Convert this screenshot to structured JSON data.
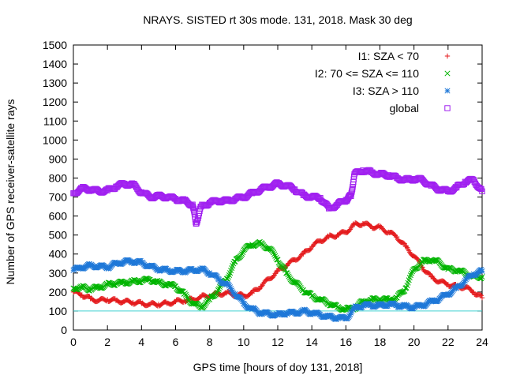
{
  "chart_data": {
    "type": "scatter",
    "title": "NRAYS. SISTED rt 30s mode. 131, 2018. Mask 30 deg",
    "xlabel": "GPS time [hours of doy 131, 2018]",
    "ylabel": "Number of GPS receiver-satellite rays",
    "xlim": [
      0,
      24
    ],
    "ylim": [
      0,
      1500
    ],
    "x_ticks": [
      0,
      2,
      4,
      6,
      8,
      10,
      12,
      14,
      16,
      18,
      20,
      22,
      24
    ],
    "y_ticks": [
      0,
      100,
      200,
      300,
      400,
      500,
      600,
      700,
      800,
      900,
      1000,
      1100,
      1200,
      1300,
      1400,
      1500
    ],
    "legend_position": "top-right",
    "reference_line": {
      "y": 100,
      "color": "#3fd0d0"
    },
    "series": [
      {
        "name": "I1: SZA < 70",
        "marker": "+",
        "color": "#e41a1c",
        "x": [
          0,
          0.5,
          1,
          1.5,
          2,
          2.5,
          3,
          3.5,
          4,
          4.5,
          5,
          5.5,
          6,
          6.5,
          7,
          7.5,
          8,
          8.5,
          9,
          9.5,
          10,
          10.5,
          11,
          11.5,
          12,
          12.5,
          13,
          13.5,
          14,
          14.5,
          15,
          15.5,
          16,
          16.5,
          17,
          17.5,
          18,
          18.5,
          19,
          19.5,
          20,
          20.5,
          21,
          21.5,
          22,
          22.5,
          23,
          23.5,
          24
        ],
        "values": [
          200,
          185,
          165,
          155,
          160,
          155,
          150,
          145,
          140,
          135,
          135,
          140,
          150,
          155,
          160,
          175,
          180,
          190,
          195,
          185,
          180,
          195,
          230,
          270,
          310,
          340,
          370,
          400,
          440,
          470,
          490,
          500,
          515,
          555,
          560,
          545,
          540,
          515,
          490,
          440,
          390,
          330,
          280,
          255,
          240,
          230,
          225,
          200,
          170
        ]
      },
      {
        "name": "I2: 70 <= SZA <= 110",
        "marker": "x",
        "color": "#00b400",
        "x": [
          0,
          0.5,
          1,
          1.5,
          2,
          2.5,
          3,
          3.5,
          4,
          4.5,
          5,
          5.5,
          6,
          6.5,
          7,
          7.5,
          8,
          8.5,
          9,
          9.5,
          10,
          10.5,
          11,
          11.5,
          12,
          12.5,
          13,
          13.5,
          14,
          14.5,
          15,
          15.5,
          16,
          16.5,
          17,
          17.5,
          18,
          18.5,
          19,
          19.5,
          20,
          20.5,
          21,
          21.5,
          22,
          22.5,
          23,
          23.5,
          24
        ],
        "values": [
          220,
          225,
          215,
          225,
          240,
          245,
          250,
          255,
          260,
          265,
          250,
          240,
          230,
          190,
          140,
          120,
          160,
          210,
          270,
          360,
          420,
          450,
          455,
          430,
          370,
          300,
          250,
          210,
          180,
          160,
          140,
          120,
          110,
          115,
          150,
          160,
          160,
          160,
          170,
          220,
          320,
          360,
          370,
          355,
          320,
          315,
          300,
          280,
          280
        ]
      },
      {
        "name": "I3: SZA > 110",
        "marker": "*",
        "color": "#1f78d8",
        "x": [
          0,
          0.5,
          1,
          1.5,
          2,
          2.5,
          3,
          3.5,
          4,
          4.5,
          5,
          5.5,
          6,
          6.5,
          7,
          7.5,
          8,
          8.5,
          9,
          9.5,
          10,
          10.5,
          11,
          11.5,
          12,
          12.5,
          13,
          13.5,
          14,
          14.5,
          15,
          15.5,
          16,
          16.5,
          17,
          17.5,
          18,
          18.5,
          19,
          19.5,
          20,
          20.5,
          21,
          21.5,
          22,
          22.5,
          23,
          23.5,
          24
        ],
        "values": [
          315,
          330,
          340,
          335,
          330,
          350,
          360,
          360,
          355,
          335,
          320,
          315,
          310,
          310,
          315,
          320,
          300,
          270,
          240,
          190,
          140,
          110,
          90,
          85,
          80,
          90,
          90,
          100,
          90,
          80,
          70,
          65,
          60,
          115,
          130,
          130,
          130,
          135,
          130,
          125,
          120,
          130,
          150,
          165,
          190,
          220,
          260,
          295,
          310
        ]
      },
      {
        "name": "global",
        "marker": "square",
        "color": "#a020f0",
        "x": [
          0,
          0.5,
          1,
          1.5,
          2,
          2.5,
          3,
          3.5,
          4,
          4.5,
          5,
          5.5,
          6,
          6.5,
          7,
          7.2,
          7.5,
          8,
          8.5,
          9,
          9.5,
          10,
          10.5,
          11,
          11.5,
          12,
          12.5,
          13,
          13.5,
          14,
          14.5,
          15,
          15.5,
          16,
          16.3,
          16.5,
          17,
          17.5,
          18,
          18.5,
          19,
          19.5,
          20,
          20.5,
          21,
          21.5,
          22,
          22.5,
          23,
          23.5,
          24
        ],
        "values": [
          720,
          745,
          740,
          730,
          735,
          755,
          770,
          765,
          725,
          700,
          705,
          700,
          690,
          680,
          660,
          560,
          650,
          670,
          680,
          680,
          690,
          700,
          720,
          740,
          755,
          770,
          760,
          740,
          710,
          700,
          695,
          640,
          660,
          685,
          705,
          820,
          840,
          830,
          820,
          815,
          800,
          790,
          795,
          790,
          760,
          740,
          730,
          750,
          780,
          790,
          730
        ]
      }
    ]
  }
}
